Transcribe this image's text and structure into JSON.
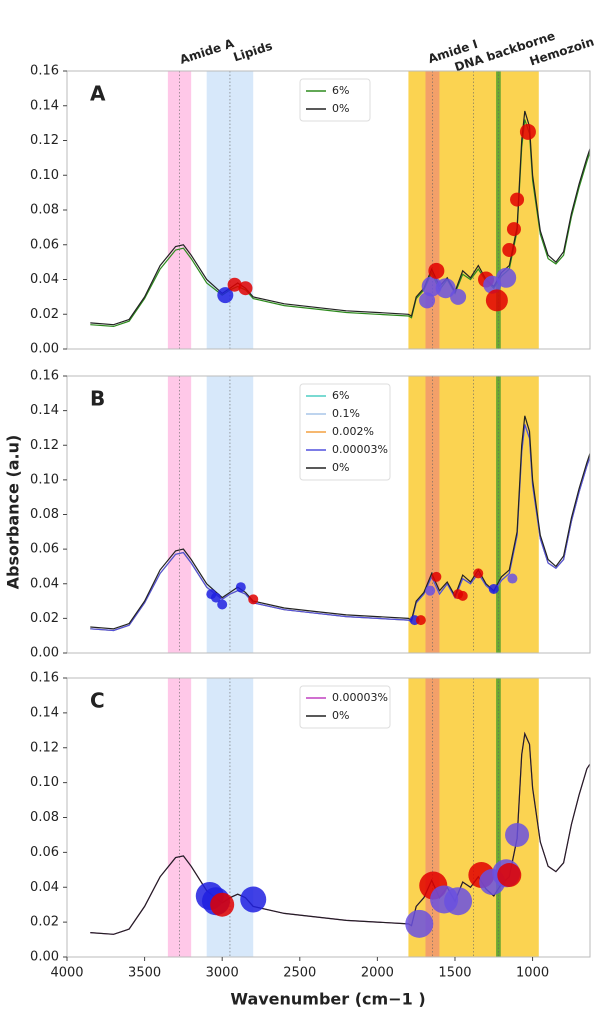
{
  "chart_data": [
    {
      "type": "line",
      "label": "A",
      "bands": [
        {
          "label": "Amide A",
          "from": 3350,
          "to": 3200,
          "color": "#ffc2e6",
          "text_color": "#e21e90"
        },
        {
          "label": "Lipids",
          "from": 3100,
          "to": 2800,
          "color": "#d3e5fa",
          "text_color": "#3aa3e3"
        },
        {
          "label": "Hemozoin",
          "from": 1800,
          "to": 960,
          "color": "#fbce3e",
          "text_color": "#f28a00"
        },
        {
          "label": "Amide I",
          "from": 1690,
          "to": 1600,
          "color": "#f29a6c",
          "text_color": "#e21e90"
        },
        {
          "label": "DNA backborne",
          "from": 1235,
          "to": 1205,
          "color": "#6aa832",
          "text_color": "#1f9a33"
        }
      ],
      "x": [
        3850,
        3700,
        3600,
        3500,
        3400,
        3300,
        3250,
        3200,
        3100,
        3000,
        2950,
        2900,
        2850,
        2800,
        2600,
        2400,
        2200,
        2000,
        1800,
        1780,
        1750,
        1700,
        1650,
        1600,
        1550,
        1500,
        1450,
        1400,
        1350,
        1300,
        1250,
        1200,
        1150,
        1100,
        1070,
        1050,
        1020,
        1000,
        950,
        900,
        850,
        800,
        750,
        700,
        650,
        620
      ],
      "series": [
        {
          "name": "6%",
          "color": "#2e8b1e",
          "values": [
            0.014,
            0.013,
            0.016,
            0.029,
            0.046,
            0.057,
            0.058,
            0.052,
            0.038,
            0.031,
            0.034,
            0.036,
            0.034,
            0.029,
            0.025,
            0.023,
            0.021,
            0.02,
            0.019,
            0.018,
            0.029,
            0.034,
            0.044,
            0.034,
            0.04,
            0.032,
            0.043,
            0.04,
            0.046,
            0.039,
            0.035,
            0.042,
            0.046,
            0.068,
            0.116,
            0.132,
            0.124,
            0.097,
            0.066,
            0.052,
            0.049,
            0.054,
            0.076,
            0.093,
            0.108,
            0.116
          ]
        },
        {
          "name": "0%",
          "color": "#222222",
          "values": [
            0.015,
            0.014,
            0.017,
            0.03,
            0.048,
            0.059,
            0.06,
            0.054,
            0.04,
            0.032,
            0.035,
            0.038,
            0.035,
            0.03,
            0.026,
            0.024,
            0.022,
            0.021,
            0.02,
            0.019,
            0.03,
            0.035,
            0.046,
            0.036,
            0.041,
            0.033,
            0.045,
            0.041,
            0.048,
            0.04,
            0.036,
            0.044,
            0.048,
            0.07,
            0.12,
            0.137,
            0.128,
            0.1,
            0.068,
            0.054,
            0.05,
            0.056,
            0.078,
            0.095,
            0.11,
            0.118
          ]
        }
      ],
      "points": {
        "x": [
          2980,
          2920,
          2850,
          1680,
          1650,
          1620,
          1560,
          1480,
          1300,
          1260,
          1230,
          1170,
          1150,
          1120,
          1100,
          1030
        ],
        "y": [
          0.031,
          0.037,
          0.035,
          0.028,
          0.036,
          0.045,
          0.035,
          0.03,
          0.04,
          0.037,
          0.028,
          0.041,
          0.057,
          0.069,
          0.086,
          0.125
        ],
        "sizes": [
          8,
          7,
          7,
          8,
          10,
          8,
          10,
          8,
          8,
          9,
          11,
          10,
          7,
          7,
          7,
          8
        ],
        "colors": [
          "#2020e0",
          "#e00000",
          "#e00000",
          "#6a50e0",
          "#6a50e0",
          "#e00000",
          "#6a50e0",
          "#6a50e0",
          "#e00000",
          "#6a50e0",
          "#e00000",
          "#6a50e0",
          "#e00000",
          "#e00000",
          "#e00000",
          "#e00000"
        ]
      },
      "xlim": [
        4000,
        630
      ],
      "ylim": [
        0,
        0.16
      ],
      "yticks": [
        {
          "value": 0,
          "label": "0.00"
        },
        {
          "value": 0.02,
          "label": "0.02"
        },
        {
          "value": 0.04,
          "label": "0.04"
        },
        {
          "value": 0.06,
          "label": "0.06"
        },
        {
          "value": 0.08,
          "label": "0.08"
        },
        {
          "value": 0.1,
          "label": "0.10"
        },
        {
          "value": 0.12,
          "label": "0.12"
        },
        {
          "value": 0.14,
          "label": "0.14"
        },
        {
          "value": 0.16,
          "label": "0.16"
        }
      ],
      "legend": "upper center"
    },
    {
      "type": "line",
      "label": "B",
      "ylabel": "Absorbance (a.u)",
      "x": [
        3850,
        3700,
        3600,
        3500,
        3400,
        3300,
        3250,
        3200,
        3100,
        3000,
        2950,
        2900,
        2850,
        2800,
        2600,
        2400,
        2200,
        2000,
        1800,
        1780,
        1750,
        1700,
        1650,
        1600,
        1550,
        1500,
        1450,
        1400,
        1350,
        1300,
        1250,
        1200,
        1150,
        1100,
        1070,
        1050,
        1020,
        1000,
        950,
        900,
        850,
        800,
        750,
        700,
        650,
        620
      ],
      "series": [
        {
          "name": "6%",
          "color": "#4ecdc4",
          "values": [
            0.014,
            0.013,
            0.016,
            0.029,
            0.046,
            0.057,
            0.058,
            0.052,
            0.038,
            0.031,
            0.034,
            0.036,
            0.034,
            0.029,
            0.025,
            0.023,
            0.021,
            0.02,
            0.019,
            0.018,
            0.029,
            0.034,
            0.044,
            0.034,
            0.04,
            0.032,
            0.043,
            0.04,
            0.046,
            0.039,
            0.035,
            0.042,
            0.046,
            0.068,
            0.116,
            0.132,
            0.124,
            0.097,
            0.066,
            0.052,
            0.049,
            0.054,
            0.076,
            0.093,
            0.108,
            0.116
          ]
        },
        {
          "name": "0.1%",
          "color": "#a9c6e8",
          "values": [
            0.014,
            0.013,
            0.016,
            0.029,
            0.046,
            0.057,
            0.058,
            0.052,
            0.038,
            0.031,
            0.034,
            0.036,
            0.034,
            0.029,
            0.025,
            0.023,
            0.021,
            0.02,
            0.019,
            0.018,
            0.029,
            0.034,
            0.044,
            0.034,
            0.04,
            0.032,
            0.043,
            0.04,
            0.046,
            0.039,
            0.035,
            0.042,
            0.046,
            0.068,
            0.116,
            0.132,
            0.124,
            0.097,
            0.066,
            0.052,
            0.049,
            0.054,
            0.076,
            0.093,
            0.108,
            0.116
          ]
        },
        {
          "name": "0.002%",
          "color": "#f4a040",
          "values": [
            0.014,
            0.013,
            0.016,
            0.029,
            0.046,
            0.057,
            0.058,
            0.052,
            0.038,
            0.031,
            0.034,
            0.036,
            0.034,
            0.029,
            0.025,
            0.023,
            0.021,
            0.02,
            0.019,
            0.018,
            0.029,
            0.034,
            0.044,
            0.034,
            0.04,
            0.032,
            0.043,
            0.04,
            0.046,
            0.039,
            0.035,
            0.042,
            0.046,
            0.068,
            0.116,
            0.132,
            0.124,
            0.097,
            0.066,
            0.052,
            0.049,
            0.054,
            0.076,
            0.093,
            0.108,
            0.116
          ]
        },
        {
          "name": "0.00003%",
          "color": "#5050dd",
          "values": [
            0.014,
            0.013,
            0.016,
            0.029,
            0.046,
            0.057,
            0.058,
            0.052,
            0.038,
            0.031,
            0.034,
            0.036,
            0.034,
            0.029,
            0.025,
            0.023,
            0.021,
            0.02,
            0.019,
            0.018,
            0.029,
            0.034,
            0.044,
            0.034,
            0.04,
            0.032,
            0.043,
            0.04,
            0.046,
            0.039,
            0.035,
            0.042,
            0.046,
            0.068,
            0.116,
            0.132,
            0.124,
            0.097,
            0.066,
            0.052,
            0.049,
            0.054,
            0.076,
            0.093,
            0.108,
            0.116
          ]
        },
        {
          "name": "0%",
          "color": "#222222",
          "values": [
            0.015,
            0.014,
            0.017,
            0.03,
            0.048,
            0.059,
            0.06,
            0.054,
            0.04,
            0.032,
            0.035,
            0.038,
            0.035,
            0.03,
            0.026,
            0.024,
            0.022,
            0.021,
            0.02,
            0.019,
            0.03,
            0.035,
            0.046,
            0.036,
            0.041,
            0.033,
            0.045,
            0.041,
            0.048,
            0.04,
            0.036,
            0.044,
            0.048,
            0.07,
            0.12,
            0.137,
            0.128,
            0.1,
            0.068,
            0.054,
            0.05,
            0.056,
            0.078,
            0.095,
            0.11,
            0.118
          ]
        }
      ],
      "points": {
        "x": [
          3070,
          3040,
          3000,
          2880,
          2800,
          1760,
          1720,
          1660,
          1620,
          1480,
          1450,
          1350,
          1250,
          1130
        ],
        "y": [
          0.034,
          0.032,
          0.028,
          0.038,
          0.031,
          0.019,
          0.019,
          0.036,
          0.044,
          0.034,
          0.033,
          0.046,
          0.037,
          0.043
        ],
        "sizes": [
          5,
          5,
          5,
          5,
          5,
          5,
          5,
          5,
          5,
          5,
          5,
          5,
          5,
          5
        ],
        "colors": [
          "#2020e0",
          "#2020e0",
          "#2020e0",
          "#2020e0",
          "#e00000",
          "#2020e0",
          "#e00000",
          "#6a50e0",
          "#e00000",
          "#e00000",
          "#e00000",
          "#e00000",
          "#2020e0",
          "#6a50e0"
        ]
      },
      "xlim": [
        4000,
        630
      ],
      "ylim": [
        0,
        0.16
      ],
      "yticks": [
        {
          "value": 0,
          "label": "0.00"
        },
        {
          "value": 0.02,
          "label": "0.02"
        },
        {
          "value": 0.04,
          "label": "0.04"
        },
        {
          "value": 0.06,
          "label": "0.06"
        },
        {
          "value": 0.08,
          "label": "0.08"
        },
        {
          "value": 0.1,
          "label": "0.10"
        },
        {
          "value": 0.12,
          "label": "0.12"
        },
        {
          "value": 0.14,
          "label": "0.14"
        },
        {
          "value": 0.16,
          "label": "0.16"
        }
      ],
      "legend": "upper center"
    },
    {
      "type": "line",
      "label": "C",
      "xlabel": "Wavenumber (cm−1 )",
      "x": [
        3850,
        3700,
        3600,
        3500,
        3400,
        3300,
        3250,
        3200,
        3100,
        3000,
        2950,
        2900,
        2850,
        2800,
        2600,
        2400,
        2200,
        2000,
        1800,
        1780,
        1750,
        1700,
        1650,
        1600,
        1550,
        1500,
        1450,
        1400,
        1350,
        1300,
        1250,
        1200,
        1150,
        1100,
        1070,
        1050,
        1020,
        1000,
        950,
        900,
        850,
        800,
        750,
        700,
        650,
        620
      ],
      "series": [
        {
          "name": "0.00003%",
          "color": "#c040c0",
          "values": [
            0.014,
            0.013,
            0.016,
            0.029,
            0.046,
            0.057,
            0.058,
            0.052,
            0.038,
            0.031,
            0.034,
            0.036,
            0.034,
            0.029,
            0.025,
            0.023,
            0.021,
            0.02,
            0.019,
            0.018,
            0.029,
            0.034,
            0.044,
            0.034,
            0.04,
            0.032,
            0.043,
            0.04,
            0.046,
            0.039,
            0.035,
            0.042,
            0.046,
            0.068,
            0.116,
            0.128,
            0.122,
            0.097,
            0.066,
            0.052,
            0.049,
            0.054,
            0.076,
            0.093,
            0.108,
            0.112
          ]
        },
        {
          "name": "0%",
          "color": "#222222",
          "values": [
            0.014,
            0.013,
            0.016,
            0.029,
            0.046,
            0.057,
            0.058,
            0.052,
            0.038,
            0.031,
            0.034,
            0.036,
            0.034,
            0.029,
            0.025,
            0.023,
            0.021,
            0.02,
            0.019,
            0.018,
            0.029,
            0.034,
            0.044,
            0.034,
            0.04,
            0.032,
            0.043,
            0.04,
            0.046,
            0.039,
            0.035,
            0.042,
            0.046,
            0.068,
            0.116,
            0.128,
            0.122,
            0.097,
            0.066,
            0.052,
            0.049,
            0.054,
            0.076,
            0.093,
            0.108,
            0.112
          ]
        }
      ],
      "points": {
        "x": [
          3080,
          3040,
          3000,
          2800,
          1730,
          1640,
          1570,
          1480,
          1330,
          1260,
          1170,
          1150,
          1100
        ],
        "y": [
          0.035,
          0.032,
          0.03,
          0.033,
          0.019,
          0.041,
          0.033,
          0.032,
          0.047,
          0.043,
          0.048,
          0.047,
          0.07
        ],
        "sizes": [
          14,
          14,
          12,
          13,
          14,
          14,
          14,
          14,
          13,
          13,
          14,
          12,
          12
        ],
        "colors": [
          "#2020e0",
          "#2020e0",
          "#e00000",
          "#2020e0",
          "#6a50e0",
          "#e00000",
          "#6a50e0",
          "#6a50e0",
          "#e00000",
          "#6a50e0",
          "#6a50e0",
          "#e00000",
          "#6a50e0"
        ]
      },
      "xlim": [
        4000,
        630
      ],
      "ylim": [
        0,
        0.16
      ],
      "yticks": [
        {
          "value": 0,
          "label": "0.00"
        },
        {
          "value": 0.02,
          "label": "0.02"
        },
        {
          "value": 0.04,
          "label": "0.04"
        },
        {
          "value": 0.06,
          "label": "0.06"
        },
        {
          "value": 0.08,
          "label": "0.08"
        },
        {
          "value": 0.1,
          "label": "0.10"
        },
        {
          "value": 0.12,
          "label": "0.12"
        },
        {
          "value": 0.14,
          "label": "0.14"
        },
        {
          "value": 0.16,
          "label": "0.16"
        }
      ],
      "xticks": [
        4000,
        3500,
        3000,
        2500,
        2000,
        1500,
        1000
      ],
      "legend": "upper center"
    }
  ]
}
